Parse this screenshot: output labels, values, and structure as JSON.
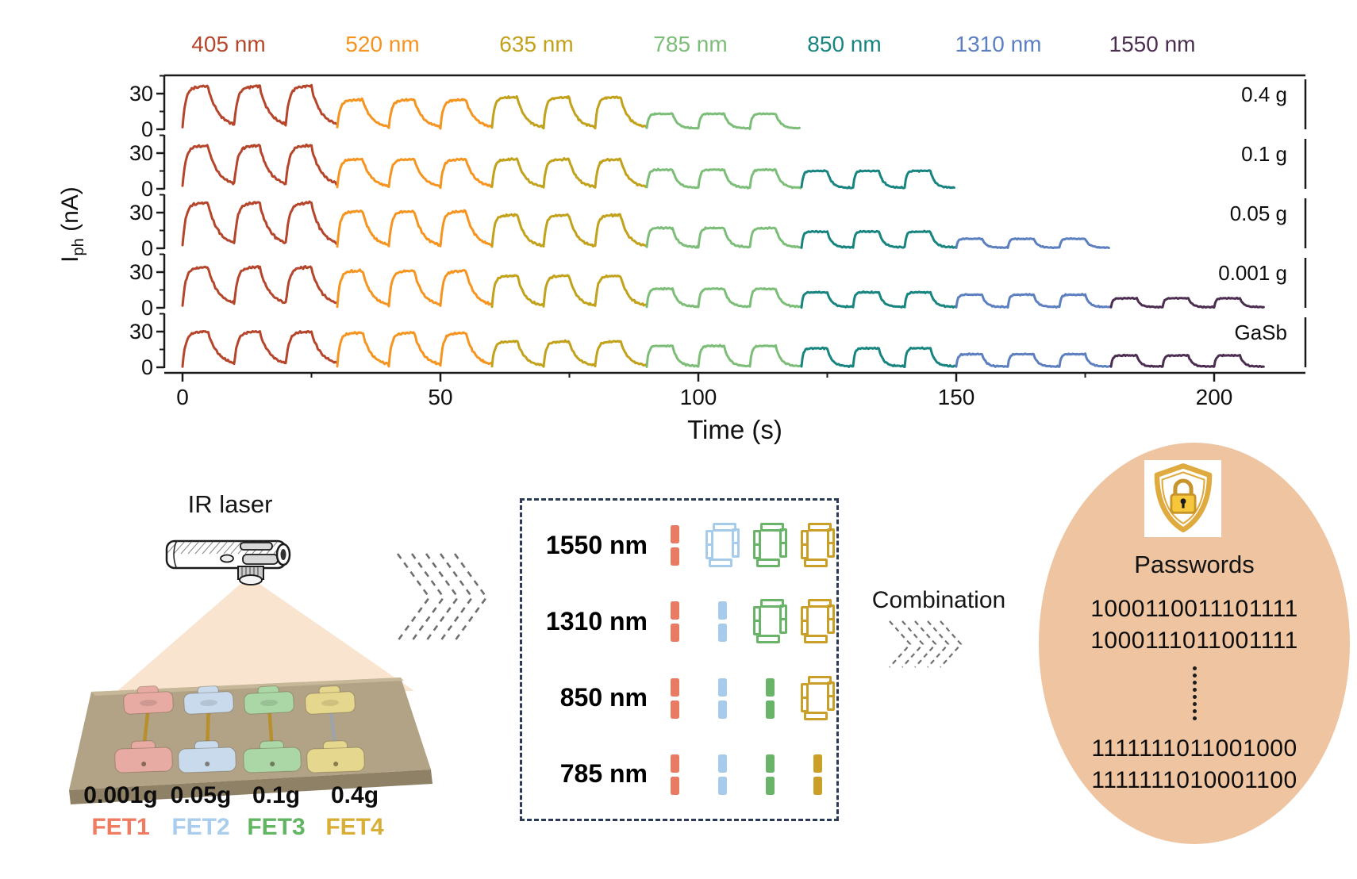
{
  "chart_data": {
    "type": "line",
    "title": "",
    "xlabel": "Time (s)",
    "ylabel": {
      "base": "I",
      "sub": "ph",
      "unit": "(nA)"
    },
    "xlim": [
      -3.5,
      218
    ],
    "x_ticks": [
      0,
      50,
      100,
      150,
      200
    ],
    "x_minor_ticks": [
      25,
      75,
      125,
      175
    ],
    "panel_ylim": [
      0,
      45
    ],
    "panel_y_ticks": [
      0,
      30
    ],
    "panel_y_minor_ticks": [
      15,
      45
    ],
    "axis_color": "#1a1a1a",
    "pulse_pattern": {
      "block_s": 30,
      "period_s": 10,
      "on_s": 5,
      "pulses_per_block": 3
    },
    "wavelengths": [
      {
        "label": "405 nm",
        "color": "#b5462c"
      },
      {
        "label": "520 nm",
        "color": "#f5941f"
      },
      {
        "label": "635 nm",
        "color": "#c2a11b"
      },
      {
        "label": "785 nm",
        "color": "#7cbd78"
      },
      {
        "label": "850 nm",
        "color": "#17847f"
      },
      {
        "label": "1310 nm",
        "color": "#5c7fc0"
      },
      {
        "label": "1550 nm",
        "color": "#4b2d50"
      }
    ],
    "series": [
      {
        "name": "0.4 g",
        "amplitudes_nA": [
          35,
          24,
          26,
          13
        ]
      },
      {
        "name": "0.1 g",
        "amplitudes_nA": [
          35,
          24,
          24,
          16,
          15
        ]
      },
      {
        "name": "0.05 g",
        "amplitudes_nA": [
          37,
          30,
          27,
          17,
          14,
          8
        ]
      },
      {
        "name": "0.001 g",
        "amplitudes_nA": [
          33,
          30,
          26,
          16,
          13,
          11,
          8
        ]
      },
      {
        "name": "GaSb",
        "amplitudes_nA": [
          29,
          28,
          21,
          18,
          16,
          11,
          10
        ]
      }
    ]
  },
  "diagram": {
    "ir_laser_label": "IR laser",
    "board_color": "#b3a386",
    "devices": [
      {
        "weight": "0.001g",
        "name": "FET1",
        "color": "#ef7b61",
        "pad_color": "#e7aba4"
      },
      {
        "weight": "0.05g",
        "name": "FET2",
        "color": "#a9cdec",
        "pad_color": "#c8daec"
      },
      {
        "weight": "0.1g",
        "name": "FET3",
        "color": "#62b562",
        "pad_color": "#abd6a6"
      },
      {
        "weight": "0.4g",
        "name": "FET4",
        "color": "#d9ae35",
        "pad_color": "#e6d78e"
      }
    ]
  },
  "encoder": {
    "bit_colors": [
      "#e87b63",
      "#a7cceb",
      "#69b468",
      "#c99f28"
    ],
    "rows": [
      {
        "label": "1550 nm",
        "bits": [
          1,
          0,
          0,
          0
        ]
      },
      {
        "label": "1310 nm",
        "bits": [
          1,
          1,
          0,
          0
        ]
      },
      {
        "label": "850 nm",
        "bits": [
          1,
          1,
          1,
          0
        ]
      },
      {
        "label": "785 nm",
        "bits": [
          1,
          1,
          1,
          1
        ]
      }
    ]
  },
  "combination": {
    "label": "Combination"
  },
  "passwords": {
    "title": "Passwords",
    "bubble_color": "#eec4a1",
    "shield_color": "#dfaa3e",
    "lock_color": "#f6c63b",
    "top_lines": [
      "1000110011101111",
      "1000111011001111"
    ],
    "bottom_lines": [
      "1111111011001000",
      "1111111010001100"
    ]
  }
}
